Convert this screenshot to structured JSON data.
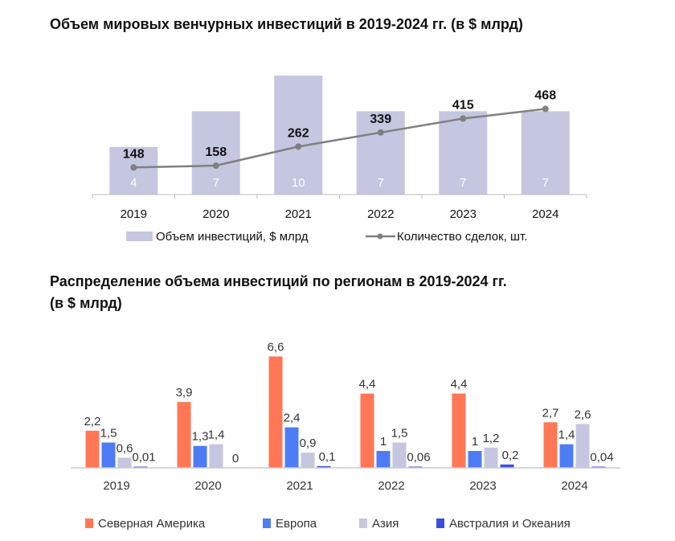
{
  "chart_data": [
    {
      "type": "bar",
      "title": "Объем мировых венчурных инвестиций в 2019-2024 гг. (в $ млрд)",
      "categories": [
        "2019",
        "2020",
        "2021",
        "2022",
        "2023",
        "2024"
      ],
      "series": [
        {
          "name": "Объем инвестиций, $ млрд",
          "type": "bar",
          "axis": "primary",
          "values": [
            4,
            7,
            10,
            7,
            7,
            7
          ],
          "labels": [
            "4",
            "7",
            "10",
            "7",
            "7",
            "7"
          ],
          "color": "#C5C6E0"
        },
        {
          "name": "Количество сделок, шт.",
          "type": "line",
          "axis": "secondary",
          "values": [
            148,
            158,
            262,
            339,
            415,
            468
          ],
          "labels": [
            "148",
            "158",
            "262",
            "339",
            "415",
            "468"
          ],
          "color": "#808080"
        }
      ],
      "ylim": [
        0,
        10
      ],
      "y2lim": [
        0,
        650
      ],
      "grid": false,
      "legend": "bottom"
    },
    {
      "type": "bar",
      "title_lines": [
        "Распределение объема инвестиций по регионам в 2019-2024 гг.",
        "(в $ млрд)"
      ],
      "categories": [
        "2019",
        "2020",
        "2021",
        "2022",
        "2023",
        "2024"
      ],
      "series": [
        {
          "name": "Северная Америка",
          "values": [
            2.2,
            3.9,
            6.6,
            4.4,
            4.4,
            2.7
          ],
          "labels": [
            "2,2",
            "3,9",
            "6,6",
            "4,4",
            "4,4",
            "2,7"
          ],
          "color": "#FF7755"
        },
        {
          "name": "Европа",
          "values": [
            1.5,
            1.3,
            2.4,
            1,
            1,
            1.4
          ],
          "labels": [
            "1,5",
            "1,3",
            "2,4",
            "1",
            "1",
            "1,4"
          ],
          "color": "#4D7CF5"
        },
        {
          "name": "Азия",
          "values": [
            0.6,
            1.4,
            0.9,
            1.5,
            1.2,
            2.6
          ],
          "labels": [
            "0,6",
            "1,4",
            "0,9",
            "1,5",
            "1,2",
            "2,6"
          ],
          "color": "#C5C6E0"
        },
        {
          "name": "Австралия и Океания",
          "values": [
            0.01,
            0,
            0.1,
            0.06,
            0.2,
            0.04
          ],
          "labels": [
            "0,01",
            "0",
            "0,1",
            "0,06",
            "0,2",
            "0,04"
          ],
          "color": "#3A4FE0"
        }
      ],
      "ylim": [
        0,
        7
      ],
      "grid": false,
      "legend": "bottom"
    }
  ]
}
